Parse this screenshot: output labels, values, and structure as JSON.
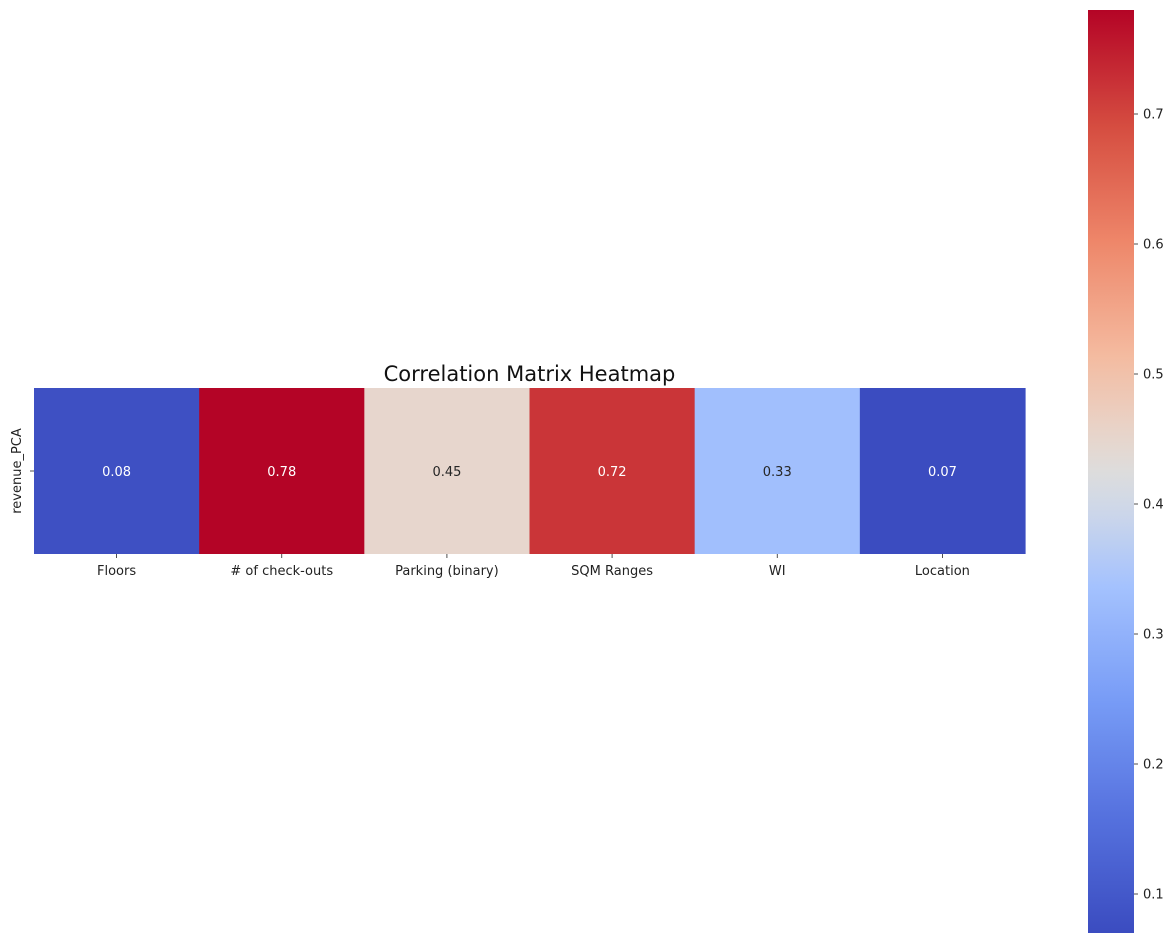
{
  "chart_data": {
    "type": "heatmap",
    "title": "Correlation Matrix Heatmap",
    "xlabel": "",
    "ylabel": "",
    "x_categories": [
      "Floors",
      "# of check-outs",
      "Parking (binary)",
      "SQM Ranges",
      "WI",
      "Location"
    ],
    "y_categories": [
      "revenue_PCA"
    ],
    "values": [
      [
        0.08,
        0.78,
        0.45,
        0.72,
        0.33,
        0.07
      ]
    ],
    "cell_labels": [
      [
        "0.08",
        "0.78",
        "0.45",
        "0.72",
        "0.33",
        "0.07"
      ]
    ],
    "colormap": "coolwarm",
    "colorbar": {
      "vmin": 0.07,
      "vmax": 0.78,
      "ticks": [
        0.1,
        0.2,
        0.3,
        0.4,
        0.5,
        0.6,
        0.7
      ],
      "tick_labels": [
        "0.1",
        "0.2",
        "0.3",
        "0.4",
        "0.5",
        "0.6",
        "0.7"
      ]
    },
    "grid": false,
    "legend": "colorbar-right"
  }
}
